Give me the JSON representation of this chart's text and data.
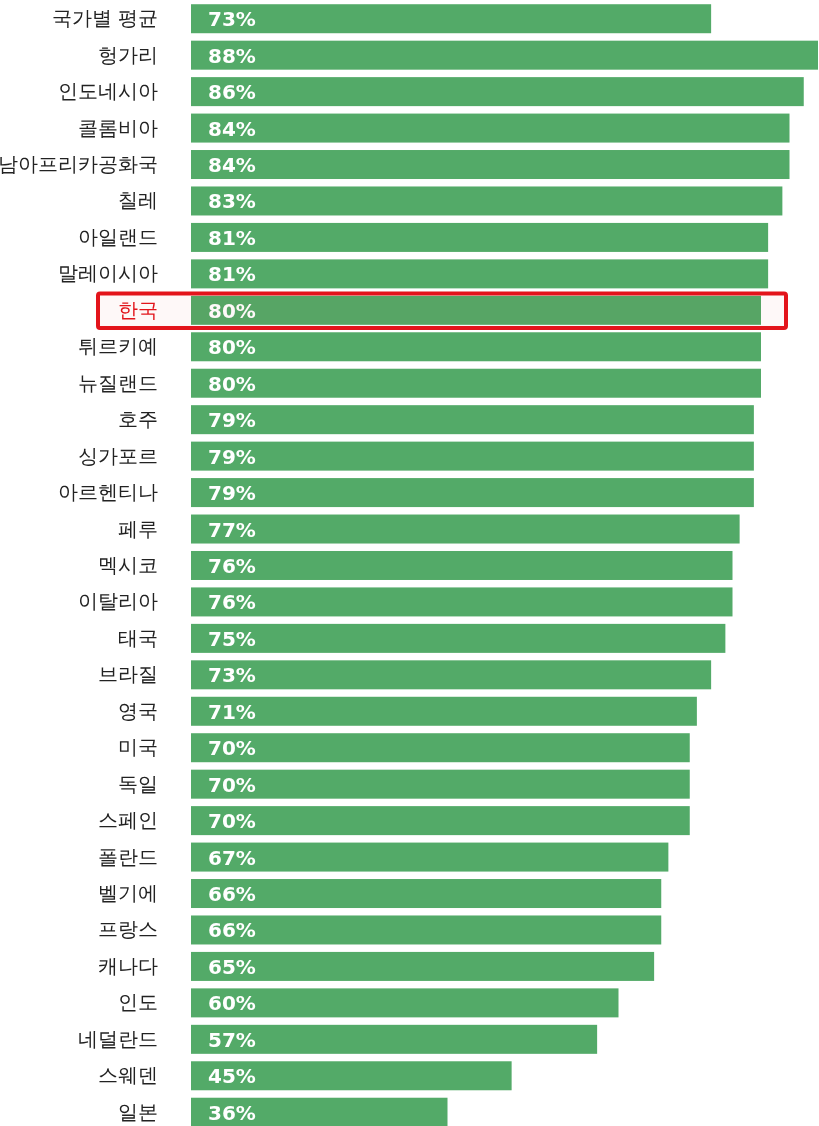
{
  "chart_data": {
    "type": "bar",
    "orientation": "horizontal",
    "categories": [
      "국가별 평균",
      "헝가리",
      "인도네시아",
      "콜롬비아",
      "남아프리카공화국",
      "칠레",
      "아일랜드",
      "말레이시아",
      "한국",
      "튀르키예",
      "뉴질랜드",
      "호주",
      "싱가포르",
      "아르헨티나",
      "페루",
      "멕시코",
      "이탈리아",
      "태국",
      "브라질",
      "영국",
      "미국",
      "독일",
      "스페인",
      "폴란드",
      "벨기에",
      "프랑스",
      "캐나다",
      "인도",
      "네덜란드",
      "스웨덴",
      "일본"
    ],
    "values": [
      73,
      88,
      86,
      84,
      84,
      83,
      81,
      81,
      80,
      80,
      80,
      79,
      79,
      79,
      77,
      76,
      76,
      75,
      73,
      71,
      70,
      70,
      70,
      67,
      66,
      66,
      65,
      60,
      57,
      45,
      36
    ],
    "value_labels": [
      "73%",
      "88%",
      "86%",
      "84%",
      "84%",
      "83%",
      "81%",
      "81%",
      "80%",
      "80%",
      "80%",
      "79%",
      "79%",
      "79%",
      "77%",
      "76%",
      "76%",
      "75%",
      "73%",
      "71%",
      "70%",
      "70%",
      "70%",
      "67%",
      "66%",
      "66%",
      "65%",
      "60%",
      "57%",
      "45%",
      "36%"
    ],
    "color": "#53aa68",
    "bands": [
      {
        "axis": "y",
        "from": "한국",
        "to": "한국",
        "color": "#e3141b"
      }
    ]
  }
}
